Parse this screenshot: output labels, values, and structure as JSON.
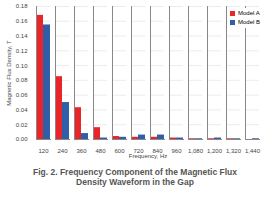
{
  "chart_data": {
    "type": "bar",
    "caption": "Fig. 2. Frequency Component of the Magnetic Flux Density Waveform in the Gap",
    "x_label": "Frequency, Hz",
    "y_label": "Magnetic Flux Density, T",
    "categories": [
      "120",
      "240",
      "360",
      "480",
      "600",
      "720",
      "840",
      "960",
      "1,080",
      "1,200",
      "1,320",
      "1,440"
    ],
    "series": [
      {
        "name": "Model A",
        "color": "#e8262a",
        "values": [
          0.168,
          0.085,
          0.043,
          0.016,
          0.004,
          0.003,
          0.003,
          0.002,
          0.001,
          0.001,
          0.001,
          0.0
        ]
      },
      {
        "name": "Model B",
        "color": "#2e5fa8",
        "values": [
          0.155,
          0.05,
          0.008,
          0.002,
          0.003,
          0.006,
          0.006,
          0.002,
          0.001,
          0.002,
          0.001,
          0.001
        ]
      }
    ],
    "ylim": [
      0,
      0.18
    ],
    "yticks": [
      {
        "value": 0,
        "label": "0.00"
      },
      {
        "value": 0.02,
        "label": "0.02"
      },
      {
        "value": 0.04,
        "label": "0.04"
      },
      {
        "value": 0.06,
        "label": "0.06"
      },
      {
        "value": 0.08,
        "label": "0.08"
      },
      {
        "value": 0.1,
        "label": "0.10"
      },
      {
        "value": 0.12,
        "label": "0.12"
      },
      {
        "value": 0.14,
        "label": "0.14"
      },
      {
        "value": 0.16,
        "label": "0.16"
      },
      {
        "value": 0.18,
        "label": "0.18"
      }
    ],
    "grid": true,
    "legend": "top-right"
  }
}
